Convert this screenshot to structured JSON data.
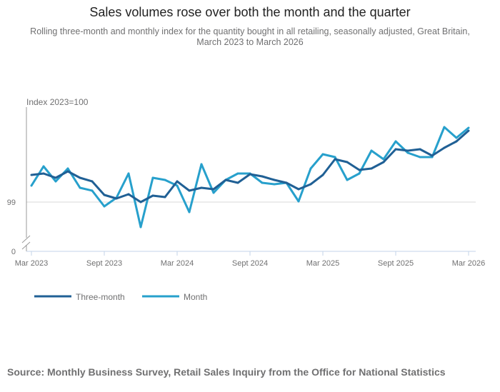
{
  "title": "Sales volumes rose over both the month and the quarter",
  "subtitle": "Rolling three-month and monthly index for the quantity bought in all retailing, seasonally adjusted, Great Britain, March 2023 to March 2026",
  "source": "Source: Monthly Business Survey, Retail Sales Inquiry from the Office for National Statistics",
  "chart_data": {
    "type": "line",
    "title": "",
    "ylabel": "Index 2023=100",
    "xlabel": "",
    "y_ticks": [
      "99",
      "0"
    ],
    "y_axis_break": true,
    "grid": "horizontal line at 99 only",
    "legend_placement": "bottom-left",
    "x_ticks": [
      "Mar 2023",
      "Sept 2023",
      "Mar 2024",
      "Sept 2024",
      "Mar 2025",
      "Sept 2025",
      "Mar 2026"
    ],
    "x": [
      "Mar 2023",
      "Apr 2023",
      "May 2023",
      "Jun 2023",
      "Jul 2023",
      "Aug 2023",
      "Sept 2023",
      "Oct 2023",
      "Nov 2023",
      "Dec 2023",
      "Jan 2024",
      "Feb 2024",
      "Mar 2024",
      "Apr 2024",
      "May 2024",
      "Jun 2024",
      "Jul 2024",
      "Aug 2024",
      "Sept 2024",
      "Oct 2024",
      "Nov 2024",
      "Dec 2024",
      "Jan 2025",
      "Feb 2025",
      "Mar 2025",
      "Apr 2025",
      "May 2025",
      "Jun 2025",
      "Jul 2025",
      "Aug 2025",
      "Sept 2025",
      "Oct 2025",
      "Nov 2025",
      "Dec 2025",
      "Jan 2026",
      "Feb 2026",
      "Mar 2026"
    ],
    "series": [
      {
        "name": "Three-month",
        "color": "#206095",
        "values": [
          99.76,
          99.8,
          99.68,
          99.86,
          99.68,
          99.58,
          99.2,
          99.1,
          99.22,
          99.0,
          99.18,
          99.14,
          99.58,
          99.32,
          99.4,
          99.36,
          99.62,
          99.54,
          99.78,
          99.72,
          99.62,
          99.54,
          99.36,
          99.5,
          99.76,
          100.2,
          100.12,
          99.9,
          99.94,
          100.12,
          100.48,
          100.44,
          100.48,
          100.3,
          100.52,
          100.7,
          101.0
        ]
      },
      {
        "name": "Month",
        "color": "#27a0cc",
        "values": [
          99.46,
          100.0,
          99.58,
          99.94,
          99.4,
          99.32,
          98.88,
          99.12,
          99.8,
          98.3,
          99.68,
          99.62,
          99.46,
          98.72,
          100.06,
          99.26,
          99.62,
          99.8,
          99.8,
          99.54,
          99.5,
          99.54,
          99.02,
          99.94,
          100.34,
          100.26,
          99.62,
          99.8,
          100.44,
          100.2,
          100.7,
          100.38,
          100.26,
          100.26,
          101.1,
          100.8,
          101.08
        ]
      }
    ]
  }
}
